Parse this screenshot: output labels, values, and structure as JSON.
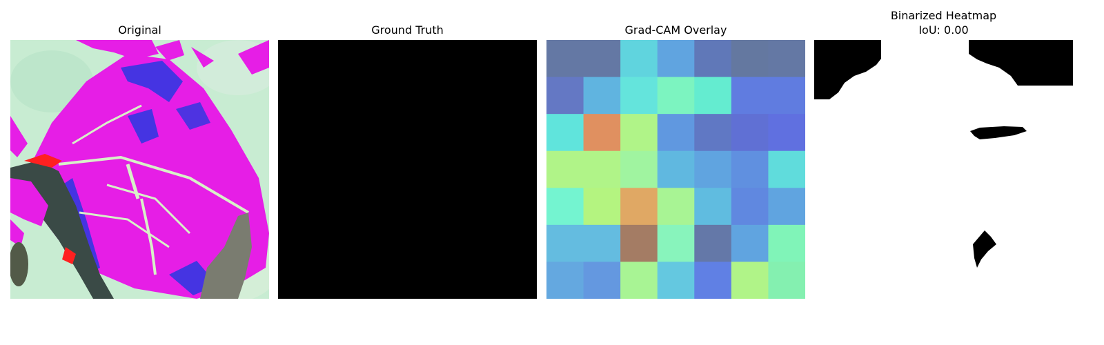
{
  "figure": {
    "panels": [
      {
        "title": "Original"
      },
      {
        "title": "Ground Truth"
      },
      {
        "title": "Grad-CAM Overlay"
      },
      {
        "title": "Binarized Heatmap",
        "subtitle": "IoU: 0.00"
      }
    ]
  },
  "colors": {
    "leaf": "#e61ee6",
    "background": "#c8ecd2",
    "mask": "#000000",
    "edge_blue": "#2838e0",
    "stem": "#3a4a46"
  },
  "heatmap": {
    "rows": 7,
    "cols": 7,
    "cells": [
      [
        "#6478a4",
        "#6478a4",
        "#60d4de",
        "#60a4e0",
        "#6078b8",
        "#6478a0",
        "#6478a4"
      ],
      [
        "#6478c4",
        "#60b4e0",
        "#64e4dc",
        "#7cf4c0",
        "#64ecd0",
        "#607ce0",
        "#607ce0"
      ],
      [
        "#60e4dc",
        "#e09060",
        "#b0f488",
        "#6098e0",
        "#6078c4",
        "#6070d4",
        "#6070e0"
      ],
      [
        "#b0f488",
        "#b0f488",
        "#a0f4a0",
        "#60b8e0",
        "#60a4e0",
        "#6090e0",
        "#60dcdc"
      ],
      [
        "#74f4d0",
        "#b4f480",
        "#e0a864",
        "#a8f494",
        "#60bce0",
        "#6088e0",
        "#60a4e0"
      ],
      [
        "#64bce0",
        "#64bce0",
        "#a47c64",
        "#88f4bc",
        "#6478a8",
        "#60a4e0",
        "#80f4b8"
      ],
      [
        "#64a8e0",
        "#6498e0",
        "#a8f494",
        "#64c8e0",
        "#6080e4",
        "#b0f488",
        "#84f0b0"
      ]
    ]
  }
}
